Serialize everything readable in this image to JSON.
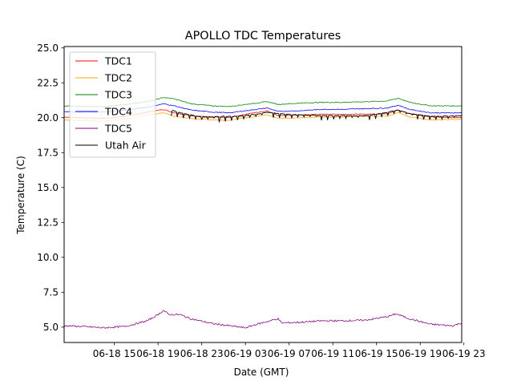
{
  "chart_data": {
    "type": "line",
    "title": "APOLLO TDC Temperatures",
    "xlabel": "Date (GMT)",
    "ylabel": "Temperature (C)",
    "xlim_hours": [
      -1.6,
      34.8
    ],
    "ylim": [
      3.9,
      25.1
    ],
    "xtick_hours": [
      3,
      7,
      11,
      15,
      19,
      23,
      27,
      31,
      35
    ],
    "xtick_labels": [
      "06-18 15",
      "06-18 19",
      "06-18 23",
      "06-19 03",
      "06-19 07",
      "06-19 11",
      "06-19 15",
      "06-19 19",
      "06-19 23"
    ],
    "yticks": [
      5.0,
      7.5,
      10.0,
      12.5,
      15.0,
      17.5,
      20.0,
      22.5,
      25.0
    ],
    "ytick_labels": [
      "5.0",
      "7.5",
      "10.0",
      "12.5",
      "15.0",
      "17.5",
      "20.0",
      "22.5",
      "25.0"
    ],
    "legend_position": "top-left",
    "series": [
      {
        "name": "TDC1",
        "color": "#ff0000",
        "points": [
          [
            -1.6,
            20.05
          ],
          [
            0,
            20.0
          ],
          [
            2,
            19.95
          ],
          [
            4,
            20.1
          ],
          [
            6,
            20.4
          ],
          [
            7.5,
            20.6
          ],
          [
            8.5,
            20.35
          ],
          [
            10,
            20.15
          ],
          [
            12,
            20.05
          ],
          [
            13.5,
            20.0
          ],
          [
            15,
            20.25
          ],
          [
            17,
            20.5
          ],
          [
            18,
            20.15
          ],
          [
            20,
            20.2
          ],
          [
            22,
            20.25
          ],
          [
            24,
            20.25
          ],
          [
            26,
            20.25
          ],
          [
            28,
            20.3
          ],
          [
            29,
            20.55
          ],
          [
            30,
            20.3
          ],
          [
            32,
            20.05
          ],
          [
            34.8,
            20.0
          ]
        ]
      },
      {
        "name": "TDC2",
        "color": "#ffa500",
        "points": [
          [
            -1.6,
            19.85
          ],
          [
            0,
            19.8
          ],
          [
            2,
            19.75
          ],
          [
            4,
            19.9
          ],
          [
            6,
            20.2
          ],
          [
            7.5,
            20.35
          ],
          [
            8.5,
            20.1
          ],
          [
            10,
            19.95
          ],
          [
            12,
            19.85
          ],
          [
            13.5,
            19.8
          ],
          [
            15,
            20.0
          ],
          [
            17,
            20.2
          ],
          [
            18,
            19.95
          ],
          [
            20,
            20.0
          ],
          [
            22,
            20.05
          ],
          [
            24,
            20.05
          ],
          [
            26,
            20.1
          ],
          [
            28,
            20.1
          ],
          [
            29,
            20.4
          ],
          [
            30,
            20.05
          ],
          [
            32,
            19.85
          ],
          [
            34.8,
            19.9
          ]
        ]
      },
      {
        "name": "TDC3",
        "color": "#008000",
        "points": [
          [
            -1.6,
            20.85
          ],
          [
            0,
            20.8
          ],
          [
            2,
            20.8
          ],
          [
            4,
            20.95
          ],
          [
            6,
            21.15
          ],
          [
            7.5,
            21.45
          ],
          [
            8.5,
            21.35
          ],
          [
            10,
            21.0
          ],
          [
            12,
            20.85
          ],
          [
            13.5,
            20.8
          ],
          [
            15,
            20.95
          ],
          [
            17,
            21.15
          ],
          [
            18,
            20.95
          ],
          [
            20,
            21.05
          ],
          [
            22,
            21.1
          ],
          [
            24,
            21.1
          ],
          [
            26,
            21.15
          ],
          [
            28,
            21.2
          ],
          [
            29,
            21.4
          ],
          [
            30,
            21.1
          ],
          [
            32,
            20.85
          ],
          [
            34.8,
            20.85
          ]
        ]
      },
      {
        "name": "TDC4",
        "color": "#0000ff",
        "points": [
          [
            -1.6,
            20.45
          ],
          [
            0,
            20.4
          ],
          [
            2,
            20.4
          ],
          [
            4,
            20.55
          ],
          [
            6,
            20.75
          ],
          [
            7.5,
            21.0
          ],
          [
            8.5,
            20.85
          ],
          [
            10,
            20.55
          ],
          [
            12,
            20.4
          ],
          [
            13.5,
            20.35
          ],
          [
            15,
            20.5
          ],
          [
            17,
            20.7
          ],
          [
            18,
            20.45
          ],
          [
            20,
            20.5
          ],
          [
            22,
            20.6
          ],
          [
            24,
            20.6
          ],
          [
            26,
            20.65
          ],
          [
            28,
            20.7
          ],
          [
            29,
            20.9
          ],
          [
            30,
            20.6
          ],
          [
            32,
            20.35
          ],
          [
            34.8,
            20.35
          ]
        ]
      },
      {
        "name": "TDC5",
        "color": "#800080",
        "points": [
          [
            -1.6,
            5.1
          ],
          [
            0,
            5.05
          ],
          [
            2,
            4.95
          ],
          [
            4,
            5.05
          ],
          [
            6,
            5.45
          ],
          [
            7,
            5.9
          ],
          [
            7.5,
            6.2
          ],
          [
            8,
            5.9
          ],
          [
            9,
            5.9
          ],
          [
            10,
            5.6
          ],
          [
            12,
            5.25
          ],
          [
            14,
            5.05
          ],
          [
            15,
            4.95
          ],
          [
            16,
            5.2
          ],
          [
            17,
            5.4
          ],
          [
            18,
            5.6
          ],
          [
            18.3,
            5.3
          ],
          [
            20,
            5.35
          ],
          [
            22,
            5.45
          ],
          [
            24,
            5.45
          ],
          [
            26,
            5.5
          ],
          [
            28,
            5.75
          ],
          [
            28.8,
            5.95
          ],
          [
            29.5,
            5.75
          ],
          [
            30,
            5.6
          ],
          [
            32,
            5.2
          ],
          [
            34,
            5.1
          ],
          [
            34.8,
            5.3
          ]
        ]
      },
      {
        "name": "Utah Air",
        "color": "#000000",
        "points": [
          [
            8.2,
            20.5
          ],
          [
            9,
            20.3
          ],
          [
            10,
            20.15
          ],
          [
            11,
            20.0
          ],
          [
            12,
            20.0
          ],
          [
            13,
            20.05
          ],
          [
            14,
            20.05
          ],
          [
            15,
            20.1
          ],
          [
            16,
            20.2
          ],
          [
            17,
            20.35
          ],
          [
            18,
            20.25
          ],
          [
            20,
            20.15
          ],
          [
            22,
            20.1
          ],
          [
            24,
            20.1
          ],
          [
            26,
            20.1
          ],
          [
            27,
            20.2
          ],
          [
            28,
            20.35
          ],
          [
            29,
            20.5
          ],
          [
            30,
            20.25
          ],
          [
            31,
            20.15
          ],
          [
            32,
            20.05
          ],
          [
            33,
            20.05
          ],
          [
            34.8,
            20.1
          ]
        ]
      }
    ]
  }
}
